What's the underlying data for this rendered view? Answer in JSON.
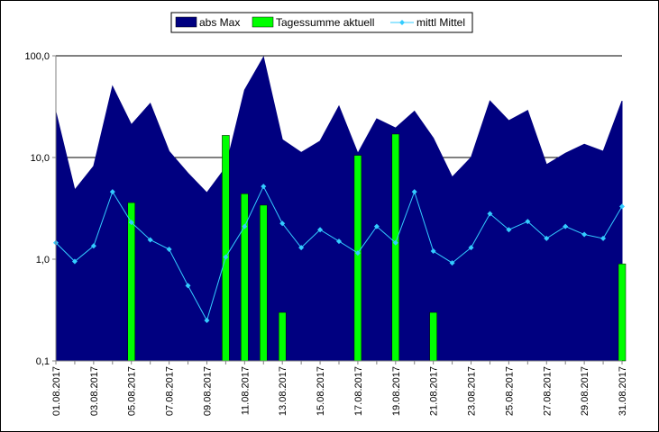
{
  "chart_data": {
    "type": "bar",
    "scale": "log",
    "ylim": [
      0.1,
      100
    ],
    "grid": "horizontal",
    "legend_position": "top-center",
    "y_ticks": [
      "0,1",
      "1,0",
      "10,0",
      "100,0"
    ],
    "x_tick_labels": [
      "01.08.2017",
      "03.08.2017",
      "05.08.2017",
      "07.08.2017",
      "09.08.2017",
      "11.08.2017",
      "13.08.2017",
      "15.08.2017",
      "17.08.2017",
      "19.08.2017",
      "21.08.2017",
      "23.08.2017",
      "25.08.2017",
      "27.08.2017",
      "29.08.2017",
      "31.08.2017"
    ],
    "categories": [
      "01.08.2017",
      "02.08.2017",
      "03.08.2017",
      "04.08.2017",
      "05.08.2017",
      "06.08.2017",
      "07.08.2017",
      "08.08.2017",
      "09.08.2017",
      "10.08.2017",
      "11.08.2017",
      "12.08.2017",
      "13.08.2017",
      "14.08.2017",
      "15.08.2017",
      "16.08.2017",
      "17.08.2017",
      "18.08.2017",
      "19.08.2017",
      "20.08.2017",
      "21.08.2017",
      "22.08.2017",
      "23.08.2017",
      "24.08.2017",
      "25.08.2017",
      "26.08.2017",
      "27.08.2017",
      "28.08.2017",
      "29.08.2017",
      "30.08.2017",
      "31.08.2017"
    ],
    "series": [
      {
        "name": "abs Max",
        "kind": "area",
        "color": "#000080",
        "values": [
          28,
          4.8,
          8.2,
          50,
          21,
          34,
          11.5,
          7.0,
          4.5,
          8.0,
          46,
          97,
          15,
          11.2,
          14.5,
          32,
          11,
          24,
          19.5,
          28.5,
          15.5,
          6.4,
          10,
          36,
          23,
          29,
          8.5,
          11,
          13.5,
          11.5,
          36
        ]
      },
      {
        "name": "Tagessumme aktuell",
        "kind": "bar",
        "color": "#00ff00",
        "values": [
          0,
          0,
          0,
          0,
          3.6,
          0,
          0,
          0,
          0,
          16.5,
          4.4,
          3.4,
          0.3,
          0,
          0,
          0,
          10.5,
          0,
          17,
          0,
          0.3,
          0,
          0,
          0,
          0,
          0,
          0,
          0,
          0,
          0,
          0.9
        ]
      },
      {
        "name": "mittl Mittel",
        "kind": "line",
        "color": "#33ccff",
        "values": [
          1.45,
          0.95,
          1.35,
          4.6,
          2.3,
          1.55,
          1.25,
          0.55,
          0.25,
          1.05,
          2.1,
          5.2,
          2.25,
          1.3,
          1.95,
          1.5,
          1.15,
          2.1,
          1.45,
          4.6,
          1.2,
          0.92,
          1.3,
          2.8,
          1.95,
          2.35,
          1.6,
          2.1,
          1.75,
          1.6,
          3.3
        ]
      }
    ]
  },
  "colors": {
    "plot_background": "#ffffff",
    "gridline": "#000000",
    "axis": "#808080"
  }
}
